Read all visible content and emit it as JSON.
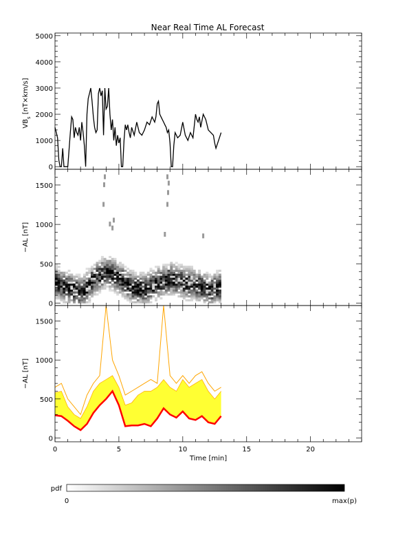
{
  "chart_data": [
    {
      "type": "line",
      "panel": "top",
      "title": "Near Real Time AL Forecast",
      "ylabel": "VBs [nT×km/s]",
      "ylabel_main": "VB",
      "ylabel_sub": "s",
      "ylabel_rest": " [nT×km/s]",
      "xlim": [
        0,
        24
      ],
      "ylim": [
        -100,
        5100
      ],
      "yticks": [
        "0",
        "1000",
        "2000",
        "3000",
        "4000",
        "5000"
      ],
      "series": [
        {
          "color": "#000000",
          "x": [
            0.0,
            0.1,
            0.2,
            0.3,
            0.4,
            0.5,
            0.6,
            0.7,
            0.8,
            1.0,
            1.2,
            1.3,
            1.4,
            1.5,
            1.6,
            1.7,
            1.8,
            1.9,
            2.0,
            2.1,
            2.2,
            2.3,
            2.4,
            2.5,
            2.6,
            2.7,
            2.8,
            2.9,
            3.0,
            3.1,
            3.2,
            3.3,
            3.4,
            3.5,
            3.6,
            3.7,
            3.8,
            3.9,
            4.0,
            4.1,
            4.2,
            4.3,
            4.4,
            4.5,
            4.6,
            4.7,
            4.8,
            4.9,
            5.0,
            5.1,
            5.2,
            5.3,
            5.4,
            5.5,
            5.6,
            5.7,
            5.8,
            5.9,
            6.0,
            6.2,
            6.4,
            6.6,
            6.8,
            7.0,
            7.2,
            7.4,
            7.6,
            7.8,
            7.9,
            8.0,
            8.1,
            8.2,
            8.3,
            8.4,
            8.5,
            8.6,
            8.7,
            8.8,
            8.9,
            9.0,
            9.1,
            9.2,
            9.3,
            9.4,
            9.6,
            9.8,
            10.0,
            10.2,
            10.4,
            10.6,
            10.8,
            11.0,
            11.1,
            11.2,
            11.3,
            11.4,
            11.6,
            11.8,
            12.0,
            12.2,
            12.4,
            12.5,
            12.6,
            12.8,
            13.0
          ],
          "values": [
            1500,
            1300,
            1100,
            250,
            0,
            0,
            700,
            0,
            0,
            0,
            1300,
            1900,
            1800,
            1100,
            1500,
            1300,
            1200,
            1500,
            1000,
            1700,
            1300,
            800,
            0,
            2000,
            2600,
            2800,
            3000,
            2500,
            1900,
            1500,
            1300,
            1400,
            2800,
            3000,
            2700,
            2900,
            1200,
            3000,
            2200,
            2300,
            3000,
            2000,
            1400,
            1800,
            1000,
            1500,
            800,
            1200,
            900,
            1100,
            0,
            0,
            1000,
            1600,
            1400,
            1600,
            1300,
            1100,
            1500,
            1200,
            1700,
            1300,
            1200,
            1400,
            1700,
            1600,
            1900,
            1700,
            1900,
            2400,
            2500,
            2000,
            1900,
            1800,
            1700,
            1600,
            1500,
            1300,
            1400,
            900,
            0,
            0,
            800,
            1300,
            1100,
            1200,
            1700,
            1200,
            1000,
            1300,
            1100,
            2000,
            1800,
            1700,
            1900,
            1500,
            2000,
            1800,
            1400,
            1300,
            1200,
            900,
            700,
            1000,
            1300
          ]
        }
      ]
    },
    {
      "type": "heatmap",
      "panel": "middle",
      "ylabel": "−AL [nT]",
      "xlim": [
        0,
        24
      ],
      "ylim": [
        -30,
        1700
      ],
      "yticks": [
        "0",
        "500",
        "1000",
        "1500"
      ],
      "note": "probability density of -AL vs time, grayscale",
      "x_range": [
        0,
        13
      ],
      "y_range": [
        0,
        650
      ],
      "ridge_x": [
        0,
        1,
        2,
        3,
        4,
        5,
        6,
        7,
        8,
        9,
        10,
        11,
        12,
        13
      ],
      "ridge_y": [
        250,
        180,
        120,
        300,
        400,
        300,
        180,
        160,
        250,
        300,
        250,
        220,
        150,
        200
      ],
      "outliers": [
        {
          "x": 3.9,
          "y": 1600
        },
        {
          "x": 3.85,
          "y": 1500
        },
        {
          "x": 3.8,
          "y": 1250
        },
        {
          "x": 8.8,
          "y": 1600
        },
        {
          "x": 8.9,
          "y": 1520
        },
        {
          "x": 8.85,
          "y": 1400
        },
        {
          "x": 8.8,
          "y": 1250
        },
        {
          "x": 4.6,
          "y": 1050
        },
        {
          "x": 4.3,
          "y": 1000
        },
        {
          "x": 4.5,
          "y": 950
        },
        {
          "x": 11.6,
          "y": 850
        },
        {
          "x": 8.6,
          "y": 870
        }
      ]
    },
    {
      "type": "area",
      "panel": "bottom",
      "xlabel": "Time [min]",
      "ylabel": "−AL [nT]",
      "xlim": [
        0,
        24
      ],
      "ylim": [
        -50,
        1700
      ],
      "xticks": [
        "0",
        "5",
        "10",
        "15",
        "20"
      ],
      "yticks": [
        "0",
        "500",
        "1000",
        "1500"
      ],
      "x": [
        0.0,
        0.5,
        1.0,
        1.5,
        2.0,
        2.5,
        3.0,
        3.5,
        4.0,
        4.5,
        5.0,
        5.5,
        6.0,
        6.5,
        7.0,
        7.5,
        8.0,
        8.5,
        9.0,
        9.5,
        10.0,
        10.5,
        11.0,
        11.5,
        12.0,
        12.5,
        13.0
      ],
      "series": [
        {
          "name": "",
          "color": "#ff0000",
          "values": [
            290,
            280,
            220,
            150,
            100,
            180,
            320,
            420,
            500,
            600,
            420,
            150,
            160,
            160,
            180,
            150,
            250,
            380,
            300,
            260,
            340,
            250,
            230,
            280,
            200,
            180,
            280
          ]
        },
        {
          "name": "",
          "color": "#ffff33",
          "band_low": [
            290,
            280,
            220,
            150,
            100,
            180,
            320,
            420,
            500,
            600,
            420,
            150,
            160,
            160,
            180,
            150,
            250,
            380,
            300,
            260,
            340,
            250,
            230,
            280,
            200,
            180,
            280
          ],
          "band_high": [
            580,
            600,
            400,
            300,
            250,
            400,
            600,
            700,
            750,
            800,
            650,
            420,
            450,
            550,
            600,
            600,
            650,
            750,
            650,
            600,
            750,
            650,
            700,
            750,
            600,
            500,
            600
          ]
        },
        {
          "name": "",
          "color": "#ffa500",
          "values": [
            650,
            700,
            500,
            400,
            300,
            550,
            700,
            800,
            1700,
            1000,
            800,
            550,
            600,
            650,
            700,
            750,
            700,
            1700,
            800,
            700,
            800,
            700,
            800,
            850,
            700,
            600,
            650
          ]
        }
      ]
    }
  ],
  "colorbar": {
    "label": "pdf",
    "min_label": "0",
    "max_label": "max(p)"
  }
}
